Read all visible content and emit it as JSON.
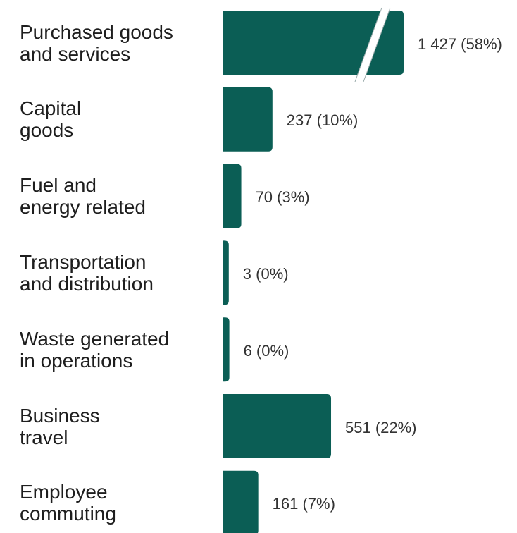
{
  "chart_data": {
    "type": "bar",
    "orientation": "horizontal",
    "color": "#0b5e55",
    "categories": [
      "Purchased goods\nand services",
      "Capital\ngoods",
      "Fuel and\nenergy related",
      "Transportation\nand distribution",
      "Waste generated\nin operations",
      "Business\ntravel",
      "Employee\ncommuting"
    ],
    "values": [
      1427,
      237,
      70,
      3,
      6,
      551,
      161
    ],
    "value_labels": [
      "1 427 (58%)",
      "237 (10%)",
      "70 (3%)",
      "3 (0%)",
      "6 (0%)",
      "551 (22%)",
      "161 (7%)"
    ]
  }
}
